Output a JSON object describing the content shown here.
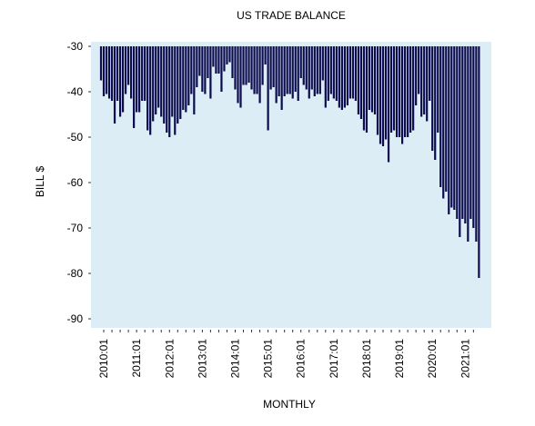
{
  "chart_data": {
    "type": "bar",
    "title": "US TRADE BALANCE",
    "xlabel": "MONTHLY",
    "ylabel": "BILL $",
    "ylim": [
      -92,
      -29
    ],
    "baseline": -30,
    "yticks": [
      -30,
      -40,
      -50,
      -60,
      -70,
      -80,
      -90
    ],
    "xtick_labels": [
      "2010:01",
      "2011:01",
      "2012:01",
      "2013:01",
      "2014:01",
      "2015:01",
      "2016:01",
      "2017:01",
      "2018:01",
      "2019:01",
      "2020:01",
      "2021:01"
    ],
    "grid": false,
    "legend": "none",
    "colors": {
      "plot_background": "#dcedf5",
      "bar": "#0b0b4e",
      "page": "#ffffff"
    },
    "series": [
      {
        "start": "2009-12",
        "frequency": "monthly",
        "values": [
          -37.5,
          -41.0,
          -40.5,
          -41.5,
          -42.0,
          -47.0,
          -42.0,
          -45.5,
          -44.5,
          -40.5,
          -38.5,
          -41.5,
          -48.0,
          -44.5,
          -44.5,
          -42.0,
          -42.0,
          -48.5,
          -49.5,
          -46.5,
          -45.0,
          -43.5,
          -45.5,
          -47.0,
          -49.0,
          -50.0,
          -45.5,
          -49.5,
          -47.0,
          -46.0,
          -44.0,
          -44.5,
          -43.0,
          -40.5,
          -45.0,
          -39.0,
          -36.5,
          -40.0,
          -40.5,
          -37.0,
          -41.5,
          -34.5,
          -36.0,
          -36.0,
          -40.0,
          -35.5,
          -34.0,
          -33.5,
          -37.0,
          -39.5,
          -42.5,
          -43.5,
          -38.5,
          -38.5,
          -38.0,
          -39.5,
          -40.5,
          -40.5,
          -42.5,
          -38.5,
          -34.0,
          -48.5,
          -39.5,
          -39.0,
          -42.5,
          -41.0,
          -44.0,
          -41.0,
          -40.5,
          -40.5,
          -41.5,
          -40.0,
          -42.0,
          -37.0,
          -38.5,
          -39.5,
          -41.5,
          -39.5,
          -41.0,
          -40.5,
          -40.5,
          -37.5,
          -43.5,
          -42.0,
          -40.5,
          -41.5,
          -42.0,
          -43.5,
          -44.0,
          -43.5,
          -43.0,
          -41.5,
          -41.5,
          -42.0,
          -45.0,
          -46.0,
          -48.5,
          -49.0,
          -44.0,
          -44.5,
          -45.0,
          -49.5,
          -51.5,
          -52.0,
          -50.5,
          -55.5,
          -49.0,
          -48.5,
          -50.0,
          -50.0,
          -51.5,
          -50.0,
          -50.0,
          -49.0,
          -48.5,
          -43.0,
          -40.5,
          -45.5,
          -45.0,
          -46.5,
          -42.0,
          -53.0,
          -55.0,
          -49.0,
          -61.0,
          -63.5,
          -62.0,
          -67.0,
          -65.5,
          -66.0,
          -68.0,
          -72.0,
          -68.0,
          -69.0,
          -73.0,
          -68.0,
          -70.0,
          -73.0,
          -81.0
        ]
      }
    ]
  }
}
